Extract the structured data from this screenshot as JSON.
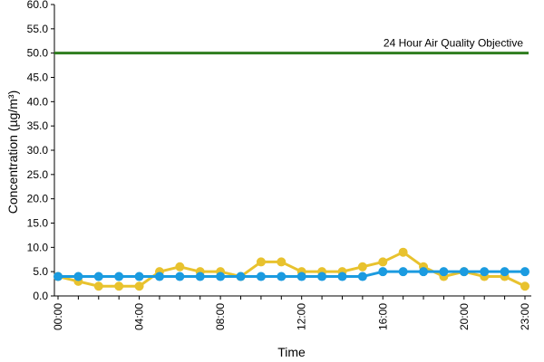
{
  "chart_data": {
    "type": "line",
    "xlabel": "Time",
    "ylabel": "Concentration (µg/m³)",
    "ylim": [
      0,
      60
    ],
    "yticks": [
      "0.0",
      "5.0",
      "10.0",
      "15.0",
      "20.0",
      "25.0",
      "30.0",
      "35.0",
      "40.0",
      "45.0",
      "50.0",
      "55.0",
      "60.0"
    ],
    "x": [
      "00:00",
      "01:00",
      "02:00",
      "03:00",
      "04:00",
      "05:00",
      "06:00",
      "07:00",
      "08:00",
      "09:00",
      "10:00",
      "11:00",
      "12:00",
      "13:00",
      "14:00",
      "15:00",
      "16:00",
      "17:00",
      "18:00",
      "19:00",
      "20:00",
      "21:00",
      "22:00",
      "23:00"
    ],
    "xtick_labels": [
      "00:00",
      "04:00",
      "08:00",
      "12:00",
      "16:00",
      "20:00",
      "23:00"
    ],
    "grid": false,
    "objective": {
      "label": "24 Hour Air Quality Objective",
      "value": 50,
      "color": "#2e7d1e"
    },
    "series": [
      {
        "color": "#e8c22e",
        "marker_fill": "#e8c22e",
        "values": [
          4,
          3,
          2,
          2,
          2,
          5,
          6,
          5,
          5,
          4,
          7,
          7,
          5,
          5,
          5,
          6,
          7,
          9,
          6,
          4,
          5,
          4,
          4,
          2
        ]
      },
      {
        "color": "#1b9be0",
        "marker_fill": "#1b9be0",
        "values": [
          4,
          4,
          4,
          4,
          4,
          4,
          4,
          4,
          4,
          4,
          4,
          4,
          4,
          4,
          4,
          4,
          5,
          5,
          5,
          5,
          5,
          5,
          5,
          5
        ]
      }
    ]
  }
}
